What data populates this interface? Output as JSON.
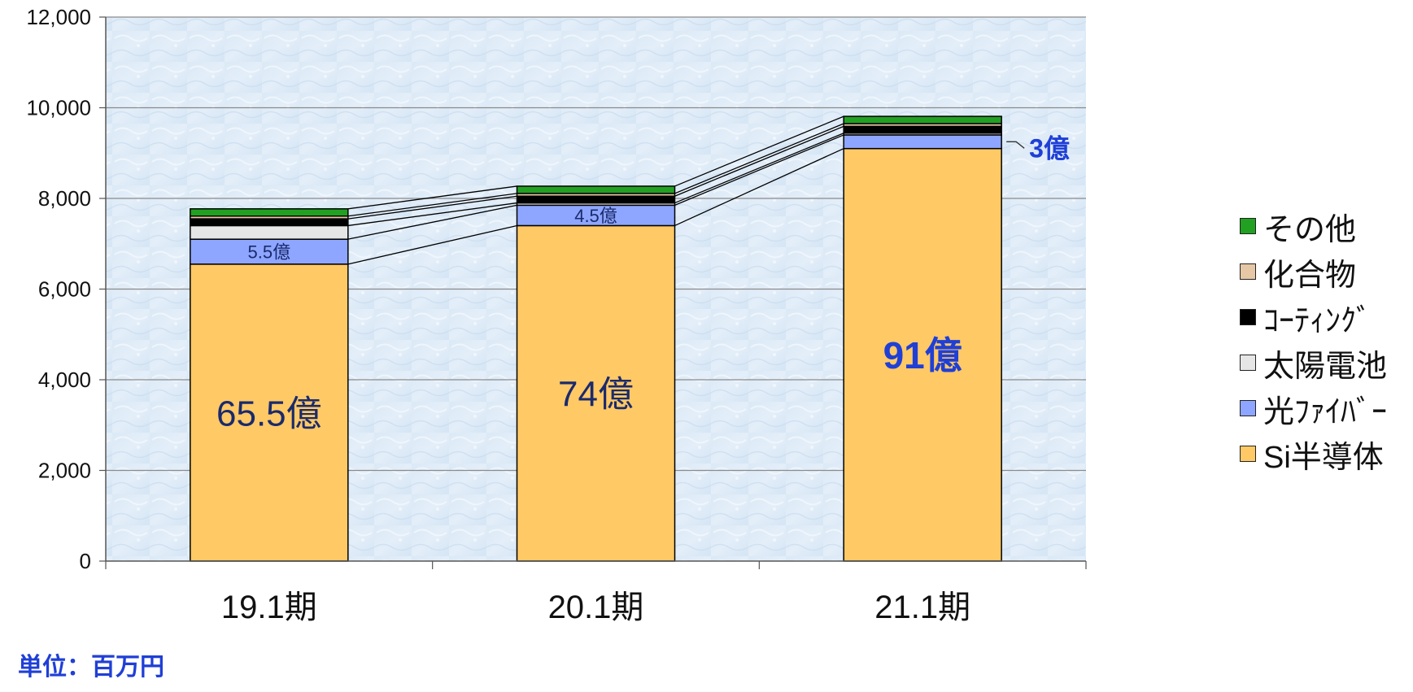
{
  "chart_data": {
    "type": "bar",
    "stacked": true,
    "categories": [
      "19.1期",
      "20.1期",
      "21.1期"
    ],
    "series": [
      {
        "name": "Si半導体",
        "color": "#ffc966",
        "values": [
          6550,
          7400,
          9100
        ]
      },
      {
        "name": "光ﾌｧｲﾊﾞｰ",
        "color": "#8ea6ff",
        "values": [
          550,
          450,
          300
        ]
      },
      {
        "name": "太陽電池",
        "color": "#e6e6e6",
        "values": [
          300,
          50,
          40
        ]
      },
      {
        "name": "ｺｰﾃｨﾝｸﾞ",
        "color": "#000000",
        "values": [
          150,
          150,
          150
        ]
      },
      {
        "name": "化合物",
        "color": "#e6c8a6",
        "values": [
          60,
          60,
          60
        ]
      },
      {
        "name": "その他",
        "color": "#22a022",
        "values": [
          160,
          160,
          160
        ]
      }
    ],
    "ylim": [
      0,
      12000
    ],
    "yticks": [
      "0",
      "2,000",
      "4,000",
      "6,000",
      "8,000",
      "10,000",
      "12,000"
    ],
    "ytick_values": [
      0,
      2000,
      4000,
      6000,
      8000,
      10000,
      12000
    ],
    "grid": true,
    "legend_position": "right",
    "unit_label": "単位：百万円",
    "annotations": [
      {
        "category": "19.1期",
        "series": "Si半導体",
        "text": "65.5億",
        "color": "#1a2a6c",
        "bold": false
      },
      {
        "category": "19.1期",
        "series": "光ﾌｧｲﾊﾞｰ",
        "text": "5.5億",
        "color": "#1a2a6c",
        "bold": false
      },
      {
        "category": "20.1期",
        "series": "Si半導体",
        "text": "74億",
        "color": "#1a2a6c",
        "bold": false
      },
      {
        "category": "20.1期",
        "series": "光ﾌｧｲﾊﾞｰ",
        "text": "4.5億",
        "color": "#1a2a6c",
        "bold": false
      },
      {
        "category": "21.1期",
        "series": "Si半導体",
        "text": "91億",
        "color": "#1f3fd6",
        "bold": true
      },
      {
        "category": "21.1期",
        "series": "光ﾌｧｲﾊﾞｰ",
        "text": "3億",
        "color": "#1f3fd6",
        "bold": true,
        "callout": true
      }
    ]
  }
}
